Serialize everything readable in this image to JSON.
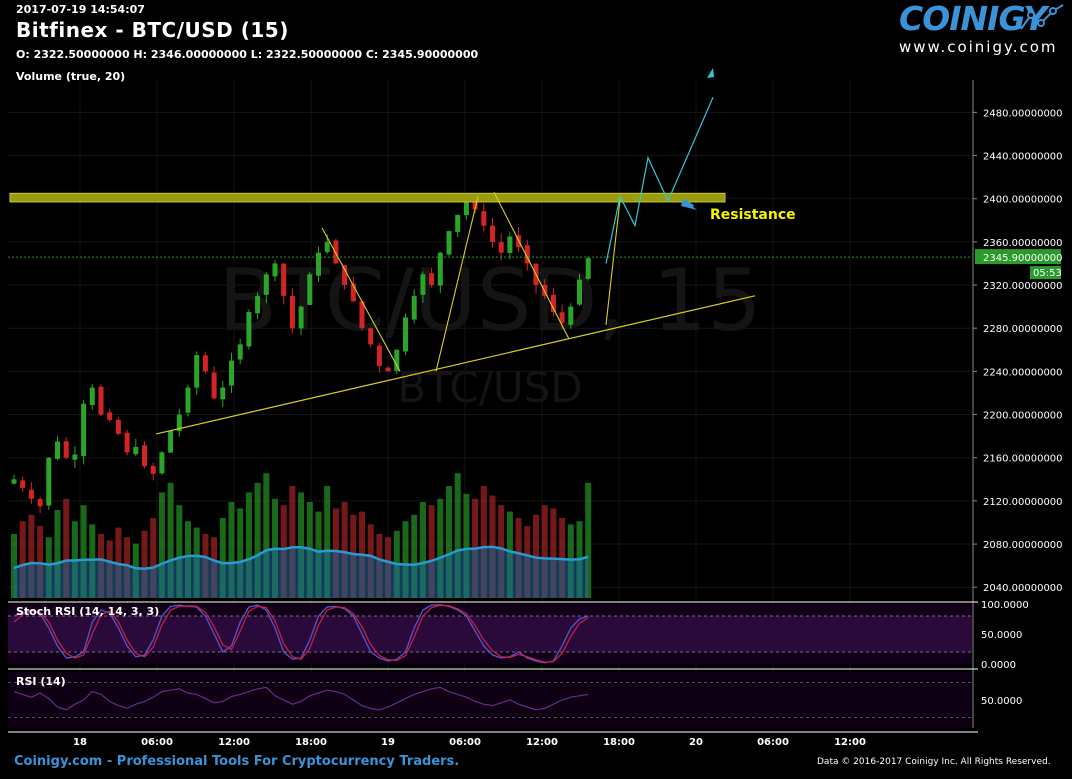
{
  "header": {
    "timestamp": "2017-07-19 14:54:07",
    "title": "Bitfinex - BTC/USD (15)",
    "ohlc": "O: 2322.50000000 H: 2346.00000000 L: 2322.50000000 C: 2345.90000000",
    "volume_label": "Volume (true, 20)"
  },
  "logo": {
    "word": "COINIGY",
    "url": "www.coinigy.com"
  },
  "watermark": {
    "main": "BTC/USD, 15",
    "sub": "BTC/USD"
  },
  "footer": {
    "left": "Coinigy.com - Professional Tools For Cryptocurrency Traders.",
    "right": "Data © 2016-2017 Coinigy Inc. All Rights Reserved."
  },
  "colors": {
    "up": "#2aa52a",
    "down": "#d22424",
    "axis_text": "#ffffff",
    "resistance": "#9b9b10",
    "trendline": "#d8d020",
    "projection": "#2fc8d8",
    "price_tag": "#2a9a2a",
    "stoch": "#5a56c8",
    "rsi": "#5a2a6a"
  },
  "chart_data": [
    {
      "type": "candlestick",
      "title": "Bitfinex - BTC/USD (15)",
      "x_tick_labels": [
        "18",
        "06:00",
        "12:00",
        "18:00",
        "19",
        "06:00",
        "12:00",
        "18:00",
        "20",
        "06:00",
        "12:00"
      ],
      "ylim": [
        2030,
        2510
      ],
      "y_ticks": [
        2040,
        2080,
        2120,
        2160,
        2200,
        2240,
        2280,
        2320,
        2360,
        2400,
        2440,
        2480
      ],
      "y_tick_labels": [
        "2040.00000000",
        "2080.00000000",
        "2120.00000000",
        "2160.00000000",
        "2200.00000000",
        "2240.00000000",
        "2280.00000000",
        "2320.00000000",
        "2360.00000000",
        "2400.00000000",
        "2440.00000000",
        "2480.00000000"
      ],
      "last_price": 2345.9,
      "last_price_label": "2345.90000000",
      "countdown_label": "05:53",
      "candle_path": [
        2140,
        2132,
        2122,
        2115,
        2160,
        2175,
        2160,
        2163,
        2210,
        2225,
        2200,
        2195,
        2182,
        2165,
        2170,
        2152,
        2145,
        2165,
        2185,
        2200,
        2225,
        2255,
        2240,
        2215,
        2225,
        2250,
        2265,
        2295,
        2310,
        2330,
        2340,
        2310,
        2280,
        2300,
        2330,
        2350,
        2360,
        2340,
        2320,
        2305,
        2280,
        2265,
        2245,
        2240,
        2260,
        2290,
        2310,
        2330,
        2320,
        2350,
        2370,
        2385,
        2398,
        2390,
        2375,
        2360,
        2350,
        2365,
        2355,
        2340,
        2320,
        2310,
        2295,
        2285,
        2300,
        2325,
        2345
      ],
      "resistance_zone": [
        2397,
        2405
      ],
      "resistance_label": "Resistance",
      "trendline_points": [
        [
          0.05,
          2182
        ],
        [
          0.92,
          2310
        ]
      ],
      "wedge_lines": [
        [
          [
            0.13,
            2373
          ],
          [
            0.17,
            2240
          ]
        ],
        [
          [
            0.18,
            2240
          ],
          [
            0.21,
            2402
          ]
        ],
        [
          [
            0.21,
            2406
          ],
          [
            0.24,
            2270
          ]
        ],
        [
          [
            0.25,
            2283
          ],
          [
            0.28,
            2399
          ]
        ]
      ],
      "projection_points": [
        2340,
        2402,
        2375,
        2438,
        2398,
        2494
      ]
    },
    {
      "type": "bar",
      "title": "Volume (true, 20)",
      "series": [
        {
          "values": [
            40,
            48,
            52,
            45,
            38,
            55,
            62,
            48,
            58,
            46,
            40,
            36,
            44,
            38,
            34,
            42,
            50,
            66,
            72,
            58,
            48,
            44,
            40,
            38,
            50,
            60,
            56,
            66,
            72,
            78,
            62,
            58,
            70,
            66,
            60,
            54,
            70,
            56,
            60,
            52,
            54,
            46,
            40,
            38,
            42,
            48,
            52,
            60,
            58,
            62,
            70,
            78,
            65,
            62,
            70,
            64,
            58,
            54,
            50,
            45,
            52,
            58,
            56,
            50,
            46,
            48,
            72
          ]
        }
      ]
    },
    {
      "type": "line",
      "title": "Stoch RSI (14, 14, 3, 3)",
      "ylim": [
        0,
        100
      ],
      "y_tick_labels": [
        "100.0000",
        "50.0000",
        "0.0000"
      ],
      "series": [
        {
          "values": [
            80,
            85,
            90,
            84,
            60,
            30,
            10,
            12,
            20,
            70,
            90,
            85,
            60,
            30,
            12,
            15,
            40,
            80,
            96,
            98,
            96,
            95,
            80,
            50,
            20,
            30,
            70,
            95,
            98,
            90,
            60,
            20,
            8,
            10,
            40,
            80,
            95,
            96,
            92,
            80,
            50,
            20,
            10,
            5,
            8,
            20,
            60,
            90,
            98,
            99,
            96,
            90,
            80,
            55,
            30,
            15,
            10,
            12,
            20,
            10,
            5,
            2,
            5,
            30,
            60,
            75,
            80
          ]
        },
        {
          "values": [
            70,
            82,
            88,
            86,
            70,
            40,
            18,
            10,
            15,
            50,
            82,
            88,
            70,
            40,
            18,
            12,
            28,
            65,
            90,
            96,
            97,
            96,
            86,
            62,
            32,
            24,
            55,
            88,
            96,
            94,
            72,
            34,
            12,
            8,
            26,
            65,
            90,
            95,
            94,
            84,
            62,
            32,
            14,
            7,
            6,
            14,
            45,
            80,
            94,
            98,
            97,
            92,
            84,
            64,
            40,
            22,
            12,
            11,
            16,
            12,
            7,
            3,
            4,
            18,
            46,
            68,
            77
          ]
        }
      ]
    },
    {
      "type": "line",
      "title": "RSI (14)",
      "y_tick_labels": [
        "50.0000"
      ],
      "series": [
        {
          "values": [
            62,
            58,
            54,
            60,
            52,
            40,
            36,
            44,
            50,
            62,
            58,
            48,
            42,
            38,
            44,
            48,
            54,
            62,
            64,
            66,
            60,
            58,
            52,
            46,
            48,
            55,
            58,
            62,
            66,
            68,
            56,
            50,
            44,
            48,
            56,
            60,
            64,
            62,
            58,
            50,
            42,
            38,
            36,
            40,
            46,
            52,
            58,
            62,
            66,
            68,
            62,
            58,
            54,
            48,
            44,
            42,
            46,
            50,
            44,
            40,
            36,
            38,
            44,
            50,
            54,
            56,
            58
          ]
        }
      ]
    }
  ]
}
